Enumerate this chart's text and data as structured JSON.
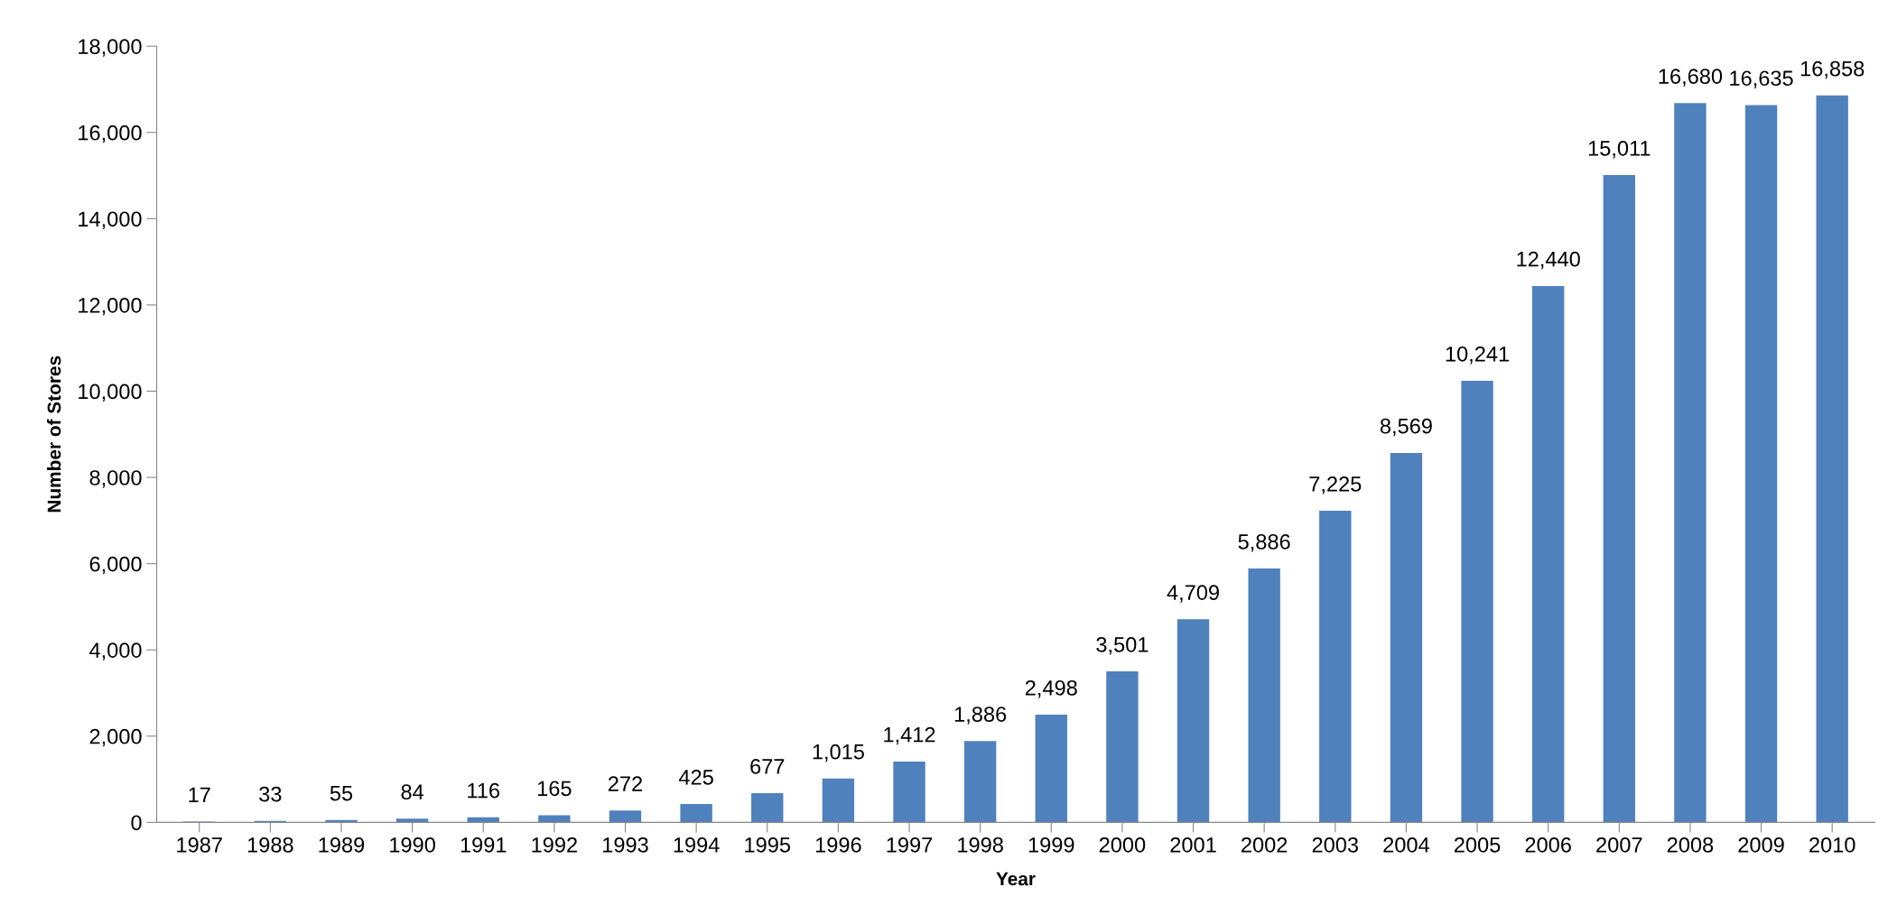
{
  "chart_data": {
    "type": "bar",
    "xlabel": "Year",
    "ylabel": "Number of Stores",
    "categories": [
      "1987",
      "1988",
      "1989",
      "1990",
      "1991",
      "1992",
      "1993",
      "1994",
      "1995",
      "1996",
      "1997",
      "1998",
      "1999",
      "2000",
      "2001",
      "2002",
      "2003",
      "2004",
      "2005",
      "2006",
      "2007",
      "2008",
      "2009",
      "2010"
    ],
    "values": [
      17,
      33,
      55,
      84,
      116,
      165,
      272,
      425,
      677,
      1015,
      1412,
      1886,
      2498,
      3501,
      4709,
      5886,
      7225,
      8569,
      10241,
      12440,
      15011,
      16680,
      16635,
      16858
    ],
    "value_labels": [
      "17",
      "33",
      "55",
      "84",
      "116",
      "165",
      "272",
      "425",
      "677",
      "1,015",
      "1,412",
      "1,886",
      "2,498",
      "3,501",
      "4,709",
      "5,886",
      "7,225",
      "8,569",
      "10,241",
      "12,440",
      "15,011",
      "16,680",
      "16,635",
      "16,858"
    ],
    "color": "#4f81bd",
    "ylim": [
      0,
      18000
    ],
    "yticks": [
      0,
      {
        "value": 2000,
        "label": "2,000"
      },
      {
        "value": 4000,
        "label": "4,000"
      },
      {
        "value": 6000,
        "label": "6,000"
      },
      {
        "value": 8000,
        "label": "8,000"
      },
      {
        "value": 10000,
        "label": "10,000"
      },
      {
        "value": 12000,
        "label": "12,000"
      },
      {
        "value": 14000,
        "label": "14,000"
      },
      {
        "value": 16000,
        "label": "16,000"
      },
      {
        "value": 18000,
        "label": "18,000"
      }
    ],
    "grid": false,
    "legend": false
  }
}
